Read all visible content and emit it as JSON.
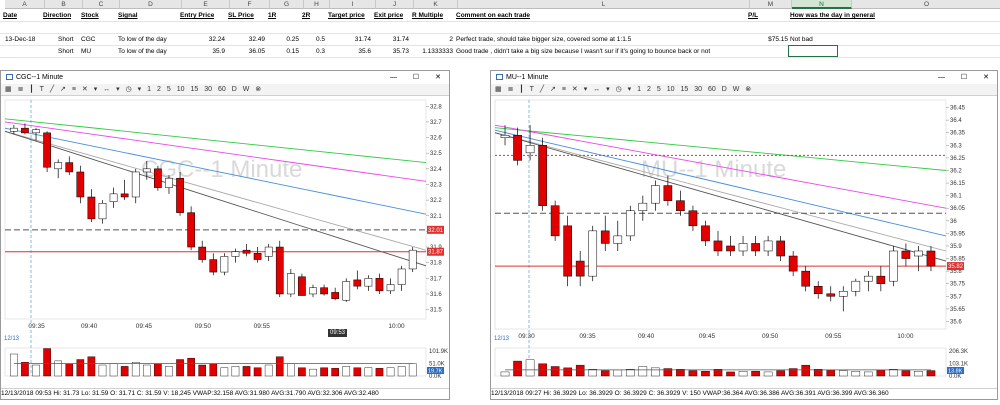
{
  "sheet": {
    "columns": [
      "A",
      "B",
      "C",
      "D",
      "E",
      "F",
      "G",
      "H",
      "I",
      "J",
      "K",
      "L",
      "M",
      "N",
      "O"
    ],
    "selected_column": "N",
    "headers": {
      "date": "Date",
      "direction": "Direction",
      "stock": "Stock",
      "signal": "Signal",
      "entry": "Entry Price",
      "sl": "SL Price",
      "r1": "1R",
      "r2": "2R",
      "target": "Target price",
      "exit": "Exit price",
      "rmult": "R Multiple",
      "comment": "Comment on each trade",
      "pl": "P/L",
      "day": "How was the day in general"
    },
    "rows": [
      {
        "date": "13-Dec-18",
        "direction": "Short",
        "stock": "CGC",
        "signal": "To low of the day",
        "entry": "32.24",
        "sl": "32.49",
        "r1": "0.25",
        "r2": "0.5",
        "target": "31.74",
        "exit": "31.74",
        "rmult": "2",
        "comment": "Perfect trade, should take bigger size, covered some at 1:1.5",
        "pl": "$75.15",
        "day": "Not bad"
      },
      {
        "date": "",
        "direction": "Short",
        "stock": "MU",
        "signal": "To low of the day",
        "entry": "35.9",
        "sl": "36.05",
        "r1": "0.15",
        "r2": "0.3",
        "target": "35.6",
        "exit": "35.73",
        "rmult": "1.1333333",
        "comment": "Good trade , didn't take a big size because I wasn't sur if it's going to bounce back or not",
        "pl": "",
        "day": ""
      }
    ]
  },
  "charts": {
    "cgc": {
      "title": "CGC--1 Minute",
      "watermark": "CGC--1 Minute",
      "toolbar_numbers": [
        "1",
        "2",
        "5",
        "10",
        "15",
        "30",
        "60"
      ],
      "toolbar_letters": [
        "D",
        "W"
      ],
      "status": "12/13/2018 09:53  Hi: 31.73  Lo: 31.59  O: 31.71  C: 31.59  V: 18,245  VWAP:32.158  AVG:31.980  AVG:31.790  AVG:32.306  AVG:32.480",
      "date_tab": "12/13",
      "cursor_time_label": "09:53",
      "price_labels": {
        "red1": "32.01",
        "red2": "31.87",
        "vol": "19.7K"
      },
      "volume_ticks": [
        "101.9K",
        "51.0K",
        "0.0K"
      ],
      "chart_data": {
        "type": "candlestick",
        "x_ticks": [
          "09:35",
          "09:40",
          "09:45",
          "09:50",
          "09:55",
          "10:00"
        ],
        "y_ticks": [
          31.5,
          31.6,
          31.7,
          31.8,
          31.9,
          32.0,
          32.1,
          32.2,
          32.3,
          32.4,
          32.5,
          32.6,
          32.7,
          32.8
        ],
        "ylim": [
          31.44,
          32.84
        ],
        "hlines": [
          {
            "value": 32.01,
            "style": "dashed",
            "color": "#555555"
          },
          {
            "value": 31.87,
            "style": "solid",
            "color": "#e03030"
          }
        ],
        "candles": [
          {
            "o": 32.64,
            "h": 32.68,
            "l": 32.62,
            "c": 32.66
          },
          {
            "o": 32.66,
            "h": 32.69,
            "l": 32.62,
            "c": 32.63
          },
          {
            "o": 32.63,
            "h": 32.66,
            "l": 32.58,
            "c": 32.65
          },
          {
            "o": 32.63,
            "h": 32.64,
            "l": 32.38,
            "c": 32.41
          },
          {
            "o": 32.4,
            "h": 32.46,
            "l": 32.34,
            "c": 32.44
          },
          {
            "o": 32.44,
            "h": 32.48,
            "l": 32.36,
            "c": 32.38
          },
          {
            "o": 32.38,
            "h": 32.42,
            "l": 32.18,
            "c": 32.22
          },
          {
            "o": 32.22,
            "h": 32.27,
            "l": 32.06,
            "c": 32.08
          },
          {
            "o": 32.08,
            "h": 32.2,
            "l": 32.05,
            "c": 32.18
          },
          {
            "o": 32.19,
            "h": 32.28,
            "l": 32.15,
            "c": 32.24
          },
          {
            "o": 32.24,
            "h": 32.33,
            "l": 32.2,
            "c": 32.22
          },
          {
            "o": 32.22,
            "h": 32.4,
            "l": 32.18,
            "c": 32.38
          },
          {
            "o": 32.38,
            "h": 32.45,
            "l": 32.33,
            "c": 32.4
          },
          {
            "o": 32.4,
            "h": 32.42,
            "l": 32.26,
            "c": 32.28
          },
          {
            "o": 32.28,
            "h": 32.36,
            "l": 32.24,
            "c": 32.34
          },
          {
            "o": 32.34,
            "h": 32.38,
            "l": 32.1,
            "c": 32.12
          },
          {
            "o": 32.12,
            "h": 32.16,
            "l": 31.88,
            "c": 31.9
          },
          {
            "o": 31.9,
            "h": 31.94,
            "l": 31.8,
            "c": 31.82
          },
          {
            "o": 31.82,
            "h": 31.86,
            "l": 31.72,
            "c": 31.74
          },
          {
            "o": 31.74,
            "h": 31.86,
            "l": 31.72,
            "c": 31.84
          },
          {
            "o": 31.84,
            "h": 31.89,
            "l": 31.8,
            "c": 31.87
          },
          {
            "o": 31.88,
            "h": 31.92,
            "l": 31.84,
            "c": 31.86
          },
          {
            "o": 31.86,
            "h": 31.9,
            "l": 31.8,
            "c": 31.82
          },
          {
            "o": 31.84,
            "h": 31.92,
            "l": 31.81,
            "c": 31.9
          },
          {
            "o": 31.9,
            "h": 31.94,
            "l": 31.58,
            "c": 31.6
          },
          {
            "o": 31.6,
            "h": 31.76,
            "l": 31.58,
            "c": 31.73
          },
          {
            "o": 31.71,
            "h": 31.73,
            "l": 31.59,
            "c": 31.59
          },
          {
            "o": 31.6,
            "h": 31.66,
            "l": 31.58,
            "c": 31.64
          },
          {
            "o": 31.64,
            "h": 31.66,
            "l": 31.59,
            "c": 31.6
          },
          {
            "o": 31.61,
            "h": 31.64,
            "l": 31.56,
            "c": 31.57
          },
          {
            "o": 31.56,
            "h": 31.7,
            "l": 31.55,
            "c": 31.68
          },
          {
            "o": 31.69,
            "h": 31.75,
            "l": 31.63,
            "c": 31.65
          },
          {
            "o": 31.65,
            "h": 31.72,
            "l": 31.62,
            "c": 31.7
          },
          {
            "o": 31.7,
            "h": 31.73,
            "l": 31.6,
            "c": 31.62
          },
          {
            "o": 31.62,
            "h": 31.7,
            "l": 31.6,
            "c": 31.66
          },
          {
            "o": 31.66,
            "h": 31.78,
            "l": 31.62,
            "c": 31.76
          },
          {
            "o": 31.76,
            "h": 31.9,
            "l": 31.74,
            "c": 31.88
          }
        ],
        "volume": [
          80,
          50,
          40,
          100,
          55,
          45,
          60,
          70,
          40,
          45,
          35,
          50,
          40,
          45,
          35,
          60,
          65,
          40,
          45,
          30,
          35,
          35,
          30,
          40,
          70,
          45,
          30,
          25,
          30,
          28,
          35,
          30,
          30,
          28,
          30,
          35,
          45
        ],
        "volume_ylim": [
          0,
          101.9
        ],
        "lines": [
          {
            "color": "#2ecc40",
            "values": [
              32.72,
              32.44
            ]
          },
          {
            "color": "#e84ae8",
            "values": [
              32.7,
              32.32
            ]
          },
          {
            "color": "#4a90d9",
            "values": [
              32.66,
              32.11
            ]
          },
          {
            "color": "#a8a8a8",
            "values": [
              32.64,
              31.88
            ]
          },
          {
            "color": "#555555",
            "values": [
              32.64,
              31.78
            ]
          }
        ]
      }
    },
    "mu": {
      "title": "MU--1 Minute",
      "watermark": "MU--1 Minute",
      "toolbar_numbers": [
        "1",
        "2",
        "5",
        "10",
        "15",
        "30",
        "60"
      ],
      "toolbar_letters": [
        "D",
        "W"
      ],
      "status": "12/13/2018 09:27  Hi: 36.3929  Lo: 36.3929  O: 36.3929  C: 36.3929  V: 150  VWAP:36.364  AVG:36.386  AVG:36.391  AVG:36.399  AVG:36.360",
      "date_tab": "12/13",
      "price_labels": {
        "red1": "35.82",
        "vol": "13.8K"
      },
      "volume_ticks": [
        "206.3K",
        "103.1K",
        "0.0K"
      ],
      "chart_data": {
        "type": "candlestick",
        "x_ticks": [
          "09:30",
          "09:35",
          "09:40",
          "09:45",
          "09:50",
          "09:55",
          "10:00"
        ],
        "y_ticks": [
          35.6,
          35.65,
          35.7,
          35.75,
          35.8,
          35.85,
          35.9,
          35.95,
          36.0,
          36.05,
          36.1,
          36.15,
          36.2,
          36.25,
          36.3,
          36.35,
          36.4,
          36.45
        ],
        "ylim": [
          35.57,
          36.48
        ],
        "hlines": [
          {
            "value": 36.03,
            "style": "dashed",
            "color": "#555555"
          },
          {
            "value": 35.82,
            "style": "solid",
            "color": "#e03030"
          },
          {
            "value": 36.26,
            "style": "dotted",
            "color": "#e03030"
          }
        ],
        "candles": [
          {
            "o": 36.33,
            "h": 36.38,
            "l": 36.3,
            "c": 36.34
          },
          {
            "o": 36.34,
            "h": 36.37,
            "l": 36.22,
            "c": 36.24
          },
          {
            "o": 36.27,
            "h": 36.38,
            "l": 36.24,
            "c": 36.3
          },
          {
            "o": 36.3,
            "h": 36.33,
            "l": 36.04,
            "c": 36.06
          },
          {
            "o": 36.06,
            "h": 36.08,
            "l": 35.92,
            "c": 35.94
          },
          {
            "o": 35.98,
            "h": 36.02,
            "l": 35.74,
            "c": 35.78
          },
          {
            "o": 35.84,
            "h": 35.88,
            "l": 35.74,
            "c": 35.78
          },
          {
            "o": 35.78,
            "h": 35.98,
            "l": 35.76,
            "c": 35.96
          },
          {
            "o": 35.96,
            "h": 36.02,
            "l": 35.88,
            "c": 35.91
          },
          {
            "o": 35.91,
            "h": 36.0,
            "l": 35.88,
            "c": 35.94
          },
          {
            "o": 35.94,
            "h": 36.06,
            "l": 35.92,
            "c": 36.04
          },
          {
            "o": 36.04,
            "h": 36.1,
            "l": 36.0,
            "c": 36.07
          },
          {
            "o": 36.07,
            "h": 36.16,
            "l": 36.04,
            "c": 36.14
          },
          {
            "o": 36.14,
            "h": 36.18,
            "l": 36.06,
            "c": 36.08
          },
          {
            "o": 36.08,
            "h": 36.12,
            "l": 36.02,
            "c": 36.04
          },
          {
            "o": 36.04,
            "h": 36.06,
            "l": 35.96,
            "c": 35.98
          },
          {
            "o": 35.98,
            "h": 36.0,
            "l": 35.9,
            "c": 35.92
          },
          {
            "o": 35.92,
            "h": 35.96,
            "l": 35.86,
            "c": 35.88
          },
          {
            "o": 35.9,
            "h": 35.94,
            "l": 35.86,
            "c": 35.88
          },
          {
            "o": 35.88,
            "h": 35.94,
            "l": 35.86,
            "c": 35.91
          },
          {
            "o": 35.91,
            "h": 35.94,
            "l": 35.86,
            "c": 35.88
          },
          {
            "o": 35.88,
            "h": 35.94,
            "l": 35.86,
            "c": 35.92
          },
          {
            "o": 35.92,
            "h": 35.94,
            "l": 35.84,
            "c": 35.86
          },
          {
            "o": 35.86,
            "h": 35.88,
            "l": 35.78,
            "c": 35.8
          },
          {
            "o": 35.8,
            "h": 35.82,
            "l": 35.72,
            "c": 35.74
          },
          {
            "o": 35.74,
            "h": 35.76,
            "l": 35.69,
            "c": 35.71
          },
          {
            "o": 35.71,
            "h": 35.74,
            "l": 35.68,
            "c": 35.7
          },
          {
            "o": 35.7,
            "h": 35.74,
            "l": 35.64,
            "c": 35.72
          },
          {
            "o": 35.72,
            "h": 35.77,
            "l": 35.7,
            "c": 35.76
          },
          {
            "o": 35.76,
            "h": 35.8,
            "l": 35.72,
            "c": 35.78
          },
          {
            "o": 35.78,
            "h": 35.82,
            "l": 35.72,
            "c": 35.75
          },
          {
            "o": 35.76,
            "h": 35.9,
            "l": 35.74,
            "c": 35.88
          },
          {
            "o": 35.88,
            "h": 35.91,
            "l": 35.82,
            "c": 35.85
          },
          {
            "o": 35.86,
            "h": 35.9,
            "l": 35.8,
            "c": 35.88
          },
          {
            "o": 35.88,
            "h": 35.9,
            "l": 35.8,
            "c": 35.82
          }
        ],
        "volume": [
          30,
          110,
          120,
          90,
          70,
          60,
          80,
          50,
          40,
          45,
          50,
          70,
          60,
          55,
          50,
          40,
          35,
          50,
          30,
          35,
          35,
          30,
          40,
          55,
          80,
          50,
          45,
          40,
          35,
          30,
          45,
          50,
          40,
          35,
          40
        ],
        "volume_ylim": [
          0,
          206.3
        ],
        "lines": [
          {
            "color": "#2ecc40",
            "values": [
              36.37,
              36.2
            ]
          },
          {
            "color": "#e84ae8",
            "values": [
              36.38,
              36.05
            ]
          },
          {
            "color": "#4a90d9",
            "values": [
              36.36,
              35.94
            ]
          },
          {
            "color": "#a8a8a8",
            "values": [
              36.35,
              35.88
            ]
          },
          {
            "color": "#555555",
            "values": [
              36.35,
              35.84
            ]
          }
        ]
      }
    }
  }
}
